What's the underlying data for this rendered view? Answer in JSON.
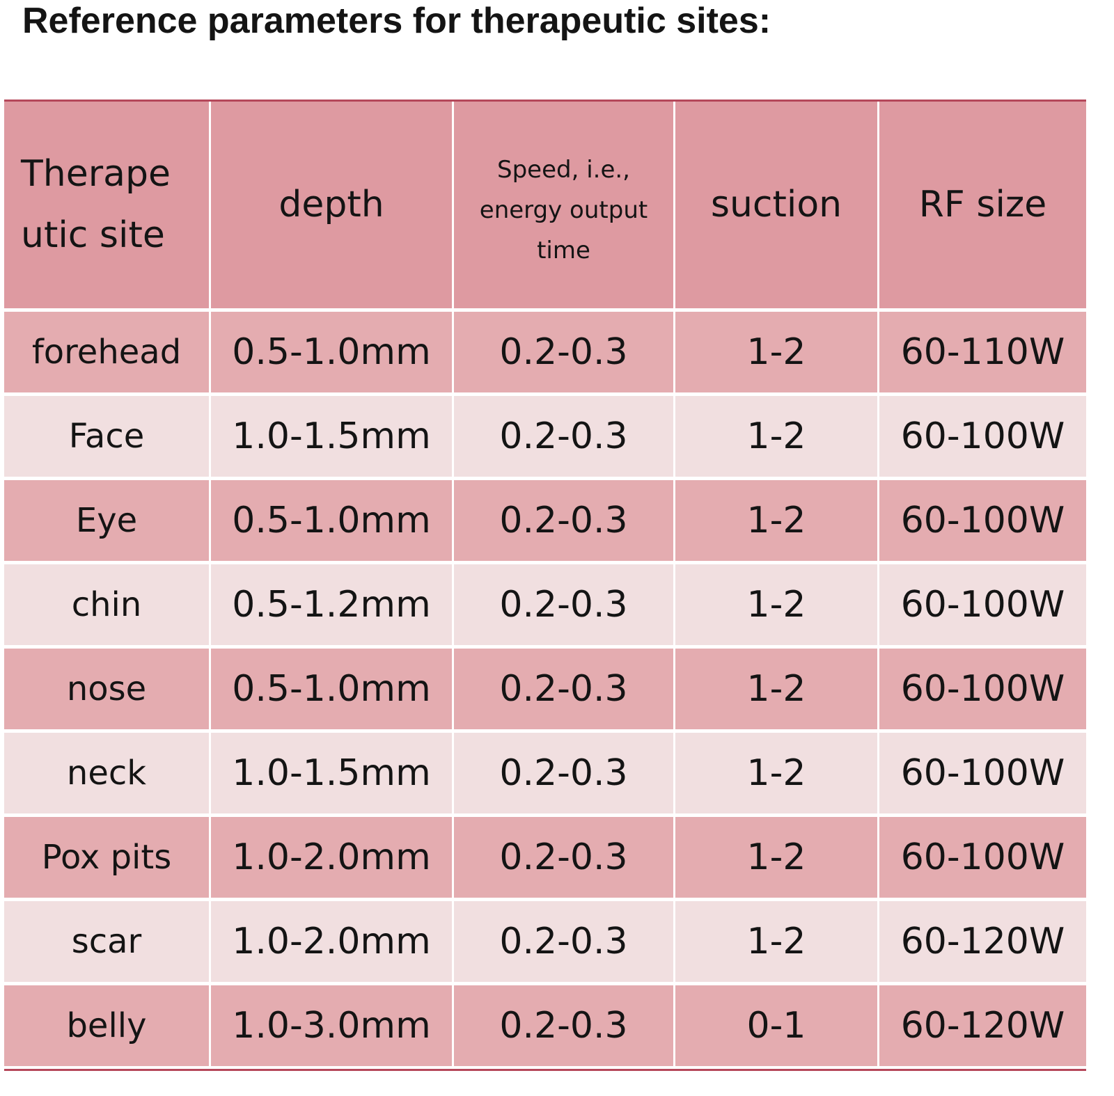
{
  "title": "Reference parameters for therapeutic sites:",
  "table": {
    "header": [
      [
        "Therape",
        "utic site"
      ],
      [
        "depth"
      ],
      [
        "Speed, i.e., energy output time"
      ],
      [
        "suction"
      ],
      [
        "RF size"
      ]
    ],
    "rows": [
      [
        "forehead",
        "0.5-1.0mm",
        "0.2-0.3",
        "1-2",
        "60-110W"
      ],
      [
        "Face",
        "1.0-1.5mm",
        "0.2-0.3",
        "1-2",
        "60-100W"
      ],
      [
        "Eye",
        "0.5-1.0mm",
        "0.2-0.3",
        "1-2",
        "60-100W"
      ],
      [
        "chin",
        "0.5-1.2mm",
        "0.2-0.3",
        "1-2",
        "60-100W"
      ],
      [
        "nose",
        "0.5-1.0mm",
        "0.2-0.3",
        "1-2",
        "60-100W"
      ],
      [
        "neck",
        "1.0-1.5mm",
        "0.2-0.3",
        "1-2",
        "60-100W"
      ],
      [
        "Pox pits",
        "1.0-2.0mm",
        "0.2-0.3",
        "1-2",
        "60-100W"
      ],
      [
        "scar",
        "1.0-2.0mm",
        "0.2-0.3",
        "1-2",
        "60-120W"
      ],
      [
        "belly",
        "1.0-3.0mm",
        "0.2-0.3",
        "0-1",
        "60-120W"
      ]
    ]
  }
}
